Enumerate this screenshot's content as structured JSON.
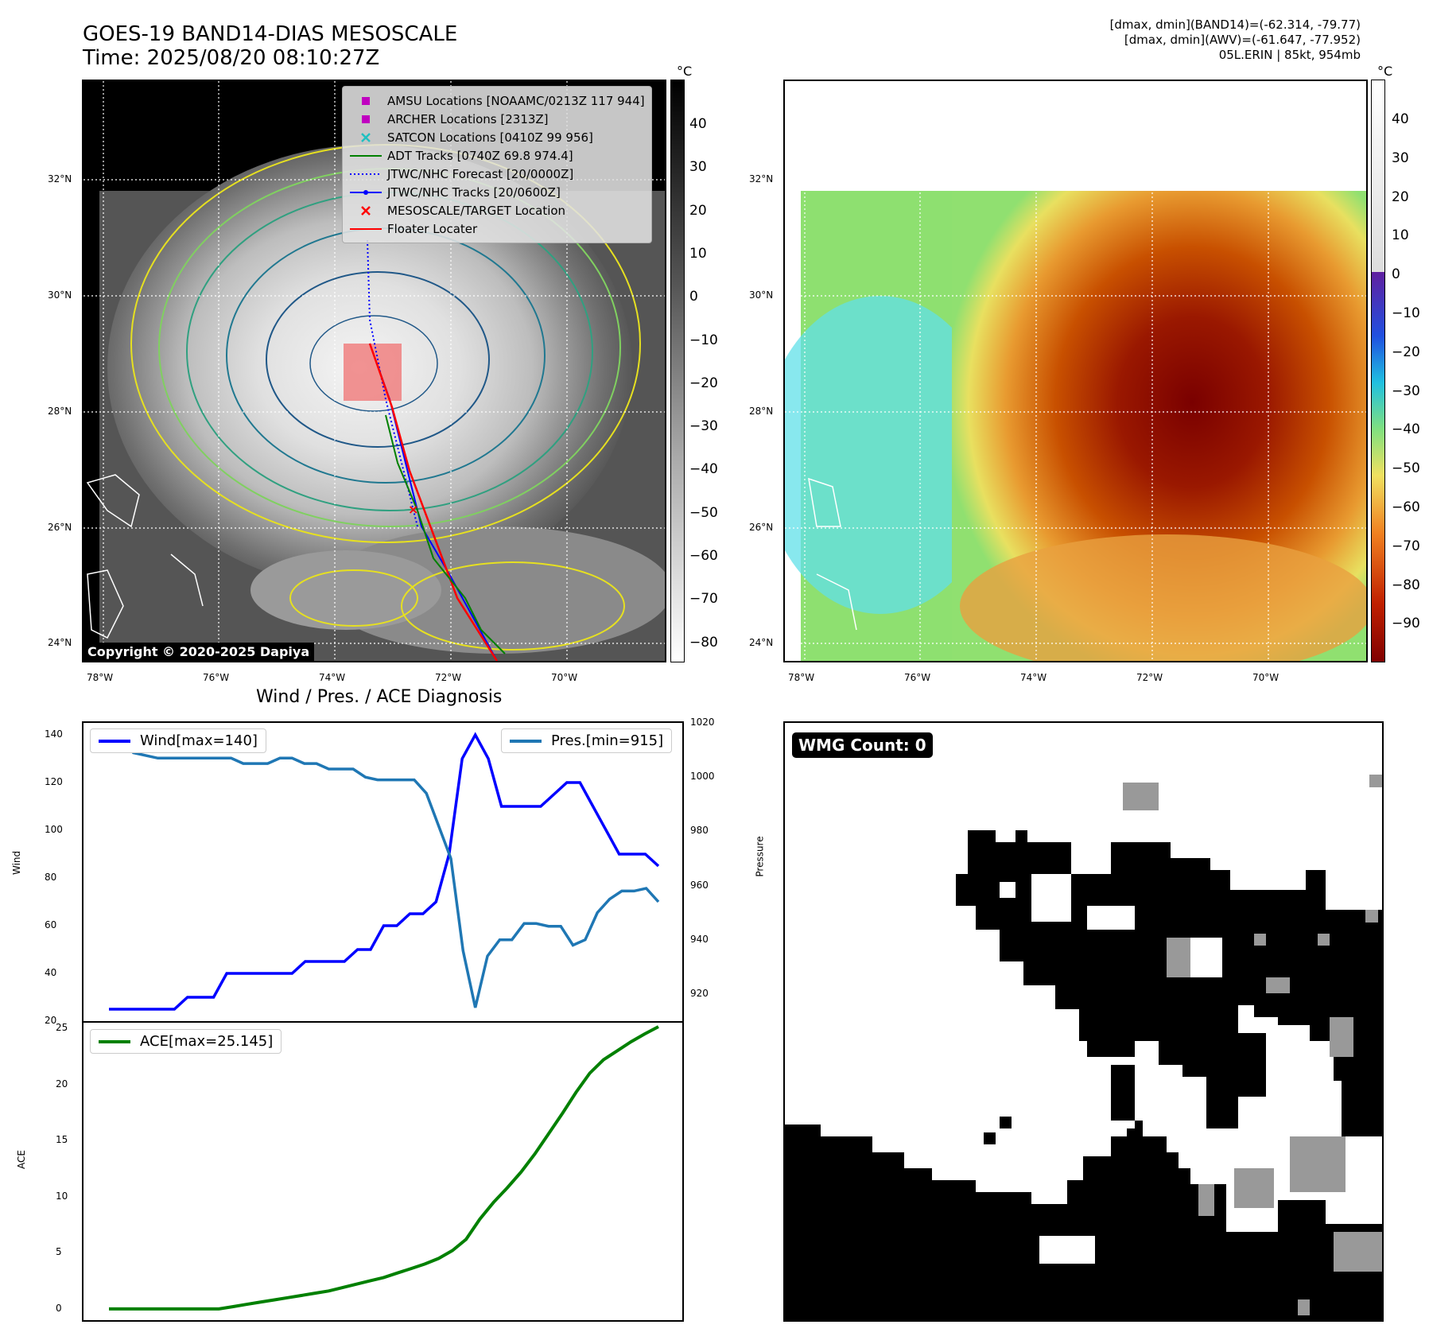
{
  "header": {
    "title_line1": "GOES-19 BAND14-DIAS MESOSCALE",
    "title_line2": "Time: 2025/08/20 08:10:27Z",
    "info_line1": "[dmax, dmin](BAND14)=(-62.314, -79.77)",
    "info_line2": "[dmax, dmin](AWV)=(-61.647, -77.952)",
    "info_line3": "05L.ERIN | 85kt, 954mb"
  },
  "map": {
    "lon_ticks": [
      "78°W",
      "76°W",
      "74°W",
      "72°W",
      "70°W"
    ],
    "lat_ticks": [
      "32°N",
      "30°N",
      "28°N",
      "26°N",
      "24°N"
    ],
    "copyright": "Copyright © 2020-2025 Dapiya",
    "colorbar_unit": "°C",
    "gray_cb_ticks": [
      "40",
      "30",
      "20",
      "10",
      "0",
      "−10",
      "−20",
      "−30",
      "−40",
      "−50",
      "−60",
      "−70",
      "−80"
    ],
    "color_cb_ticks": [
      "40",
      "30",
      "20",
      "10",
      "0",
      "−10",
      "−20",
      "−30",
      "−40",
      "−50",
      "−60",
      "−70",
      "−80",
      "−90"
    ],
    "legend": [
      {
        "label": "AMSU Locations [NOAAMC/0213Z 117 944]",
        "icon": "magenta-square",
        "color": "#c000c0"
      },
      {
        "label": "ARCHER Locations [2313Z]",
        "icon": "magenta-square",
        "color": "#c000c0"
      },
      {
        "label": "SATCON Locations [0410Z 99 956]",
        "icon": "cyan-x",
        "color": "#20c0c0"
      },
      {
        "label": "ADT Tracks [0740Z 69.8 974.4]",
        "icon": "green-line",
        "color": "#008000"
      },
      {
        "label": "JTWC/NHC Forecast [20/0000Z]",
        "icon": "blue-dotted-line",
        "color": "#0000ff"
      },
      {
        "label": "JTWC/NHC Tracks [20/0600Z]",
        "icon": "blue-dot-line",
        "color": "#0000ff"
      },
      {
        "label": "MESOSCALE/TARGET Location",
        "icon": "red-x",
        "color": "#ff0000"
      },
      {
        "label": "Floater Locater",
        "icon": "red-line",
        "color": "#ff0000"
      }
    ]
  },
  "diag": {
    "title": "Wind / Pres. / ACE Diagnosis",
    "wind_legend": "Wind[max=140]",
    "pres_legend": "Pres.[min=915]",
    "ace_legend": "ACE[max=25.145]",
    "wind_label": "Wind",
    "pres_label": "Pressure",
    "ace_label": "ACE",
    "wmg_label": "WMG Count: 0"
  },
  "chart_data": [
    {
      "type": "line",
      "title": "Wind / Pres. / ACE Diagnosis",
      "ylabel": "Wind",
      "ylim": [
        20,
        145
      ],
      "yticks": [
        20,
        40,
        60,
        80,
        100,
        120,
        140
      ],
      "series": [
        {
          "name": "Wind[max=140]",
          "color": "#0000ff",
          "values": [
            25,
            25,
            25,
            25,
            25,
            25,
            30,
            30,
            30,
            40,
            40,
            40,
            40,
            40,
            40,
            45,
            45,
            45,
            45,
            50,
            50,
            60,
            60,
            65,
            65,
            70,
            90,
            130,
            140,
            130,
            110,
            110,
            110,
            110,
            115,
            120,
            120,
            110,
            100,
            90,
            90,
            90,
            85
          ]
        }
      ]
    },
    {
      "type": "line",
      "ylabel": "Pressure",
      "ylim": [
        910,
        1020
      ],
      "yticks": [
        920,
        940,
        960,
        980,
        1000,
        1020
      ],
      "series": [
        {
          "name": "Pres.[min=915]",
          "color": "#1f77b4",
          "values": [
            1015,
            1015,
            1009,
            1008,
            1007,
            1007,
            1007,
            1007,
            1007,
            1007,
            1007,
            1005,
            1005,
            1005,
            1007,
            1007,
            1005,
            1005,
            1003,
            1003,
            1003,
            1000,
            999,
            999,
            999,
            999,
            994,
            982,
            970,
            936,
            915,
            934,
            940,
            940,
            946,
            946,
            945,
            945,
            938,
            940,
            950,
            955,
            958,
            958,
            959,
            954
          ]
        }
      ]
    },
    {
      "type": "line",
      "ylabel": "ACE",
      "ylim": [
        -1,
        25.5
      ],
      "yticks": [
        0,
        5,
        10,
        15,
        20,
        25
      ],
      "series": [
        {
          "name": "ACE[max=25.145]",
          "color": "#008000",
          "values": [
            0,
            0,
            0,
            0,
            0,
            0,
            0,
            0,
            0,
            0.2,
            0.4,
            0.6,
            0.8,
            1.0,
            1.2,
            1.4,
            1.6,
            1.9,
            2.2,
            2.5,
            2.8,
            3.2,
            3.6,
            4.0,
            4.5,
            5.2,
            6.2,
            8.0,
            9.5,
            10.8,
            12.2,
            13.8,
            15.6,
            17.4,
            19.3,
            21.0,
            22.2,
            23.0,
            23.8,
            24.5,
            25.145
          ]
        }
      ]
    }
  ]
}
